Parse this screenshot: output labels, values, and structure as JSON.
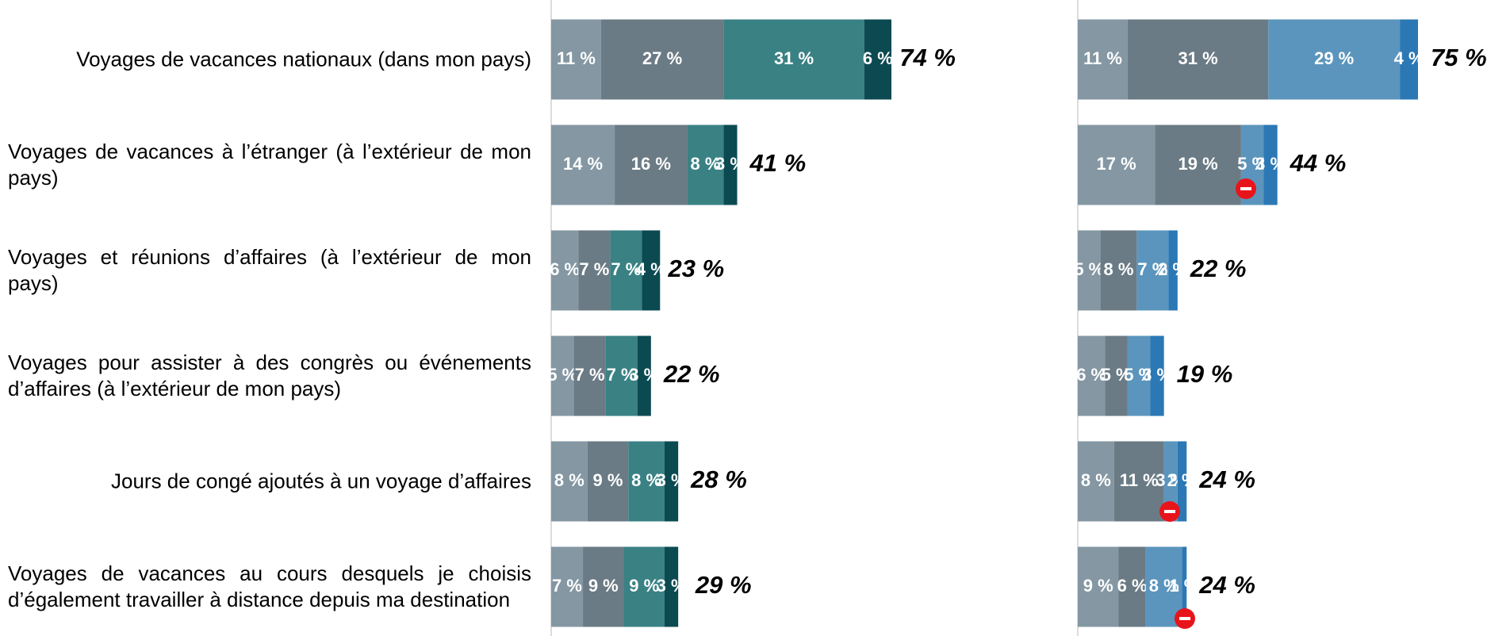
{
  "chart_data": {
    "type": "stacked_barh",
    "categories": [
      "Voyages de vacances nationaux (dans mon pays)",
      "Voyages de vacances à l’étranger (à l’extérieur de mon pays)",
      "Voyages et réunions d’affaires (à l’extérieur de mon pays)",
      "Voyages pour assister à des congrès ou événements d’affaires (à l’extérieur de mon pays)",
      "Jours de congé ajoutés à un voyage d’affaires",
      "Voyages de vacances au cours desquels je choisis d’également travailler à distance depuis ma destination"
    ],
    "xlim": [
      0,
      100
    ],
    "panels": [
      {
        "series": [
          {
            "color": "#8497a3",
            "values": [
              11,
              14,
              6,
              5,
              8,
              7
            ],
            "value_labels": [
              "11 %",
              "14 %",
              "6 %",
              "5 %",
              "8 %",
              "7 %"
            ]
          },
          {
            "color": "#6b7b85",
            "values": [
              27,
              16,
              7,
              7,
              9,
              9
            ],
            "value_labels": [
              "27 %",
              "16 %",
              "7 %",
              "7 %",
              "9 %",
              "9 %"
            ]
          },
          {
            "color": "#3a8184",
            "values": [
              31,
              8,
              7,
              7,
              8,
              9
            ],
            "value_labels": [
              "31 %",
              "8 %",
              "7 %",
              "7 %",
              "8 %",
              "9 %"
            ]
          },
          {
            "color": "#0c4a52",
            "values": [
              6,
              3,
              4,
              3,
              3,
              3
            ],
            "value_labels": [
              "6 %",
              "3 %",
              "4 %",
              "3 %",
              "3 %",
              "3 %"
            ]
          }
        ],
        "totals": [
          74,
          41,
          23,
          22,
          28,
          29
        ],
        "total_labels": [
          "74 %",
          "41 %",
          "23 %",
          "22 %",
          "28 %",
          "29 %"
        ]
      },
      {
        "series": [
          {
            "color": "#8497a3",
            "values": [
              11,
              17,
              5,
              6,
              8,
              9
            ],
            "value_labels": [
              "11 %",
              "17 %",
              "5 %",
              "6 %",
              "8 %",
              "9 %"
            ]
          },
          {
            "color": "#6b7b85",
            "values": [
              31,
              19,
              8,
              5,
              11,
              6
            ],
            "value_labels": [
              "31 %",
              "19 %",
              "8 %",
              "5 %",
              "11 %",
              "6 %"
            ]
          },
          {
            "color": "#5b95bd",
            "values": [
              29,
              5,
              7,
              5,
              3,
              8
            ],
            "value_labels": [
              "29 %",
              "5 %",
              "7 %",
              "5 %",
              "3 %",
              "8 %"
            ]
          },
          {
            "color": "#2b78b5",
            "values": [
              4,
              3,
              2,
              3,
              2,
              1
            ],
            "value_labels": [
              "4 %",
              "3 %",
              "2 %",
              "3 %",
              "2 %",
              "1 %"
            ]
          }
        ],
        "totals": [
          75,
          44,
          22,
          19,
          24,
          24
        ],
        "total_labels": [
          "75 %",
          "44 %",
          "22 %",
          "19 %",
          "24 %",
          "24 %"
        ]
      }
    ]
  }
}
